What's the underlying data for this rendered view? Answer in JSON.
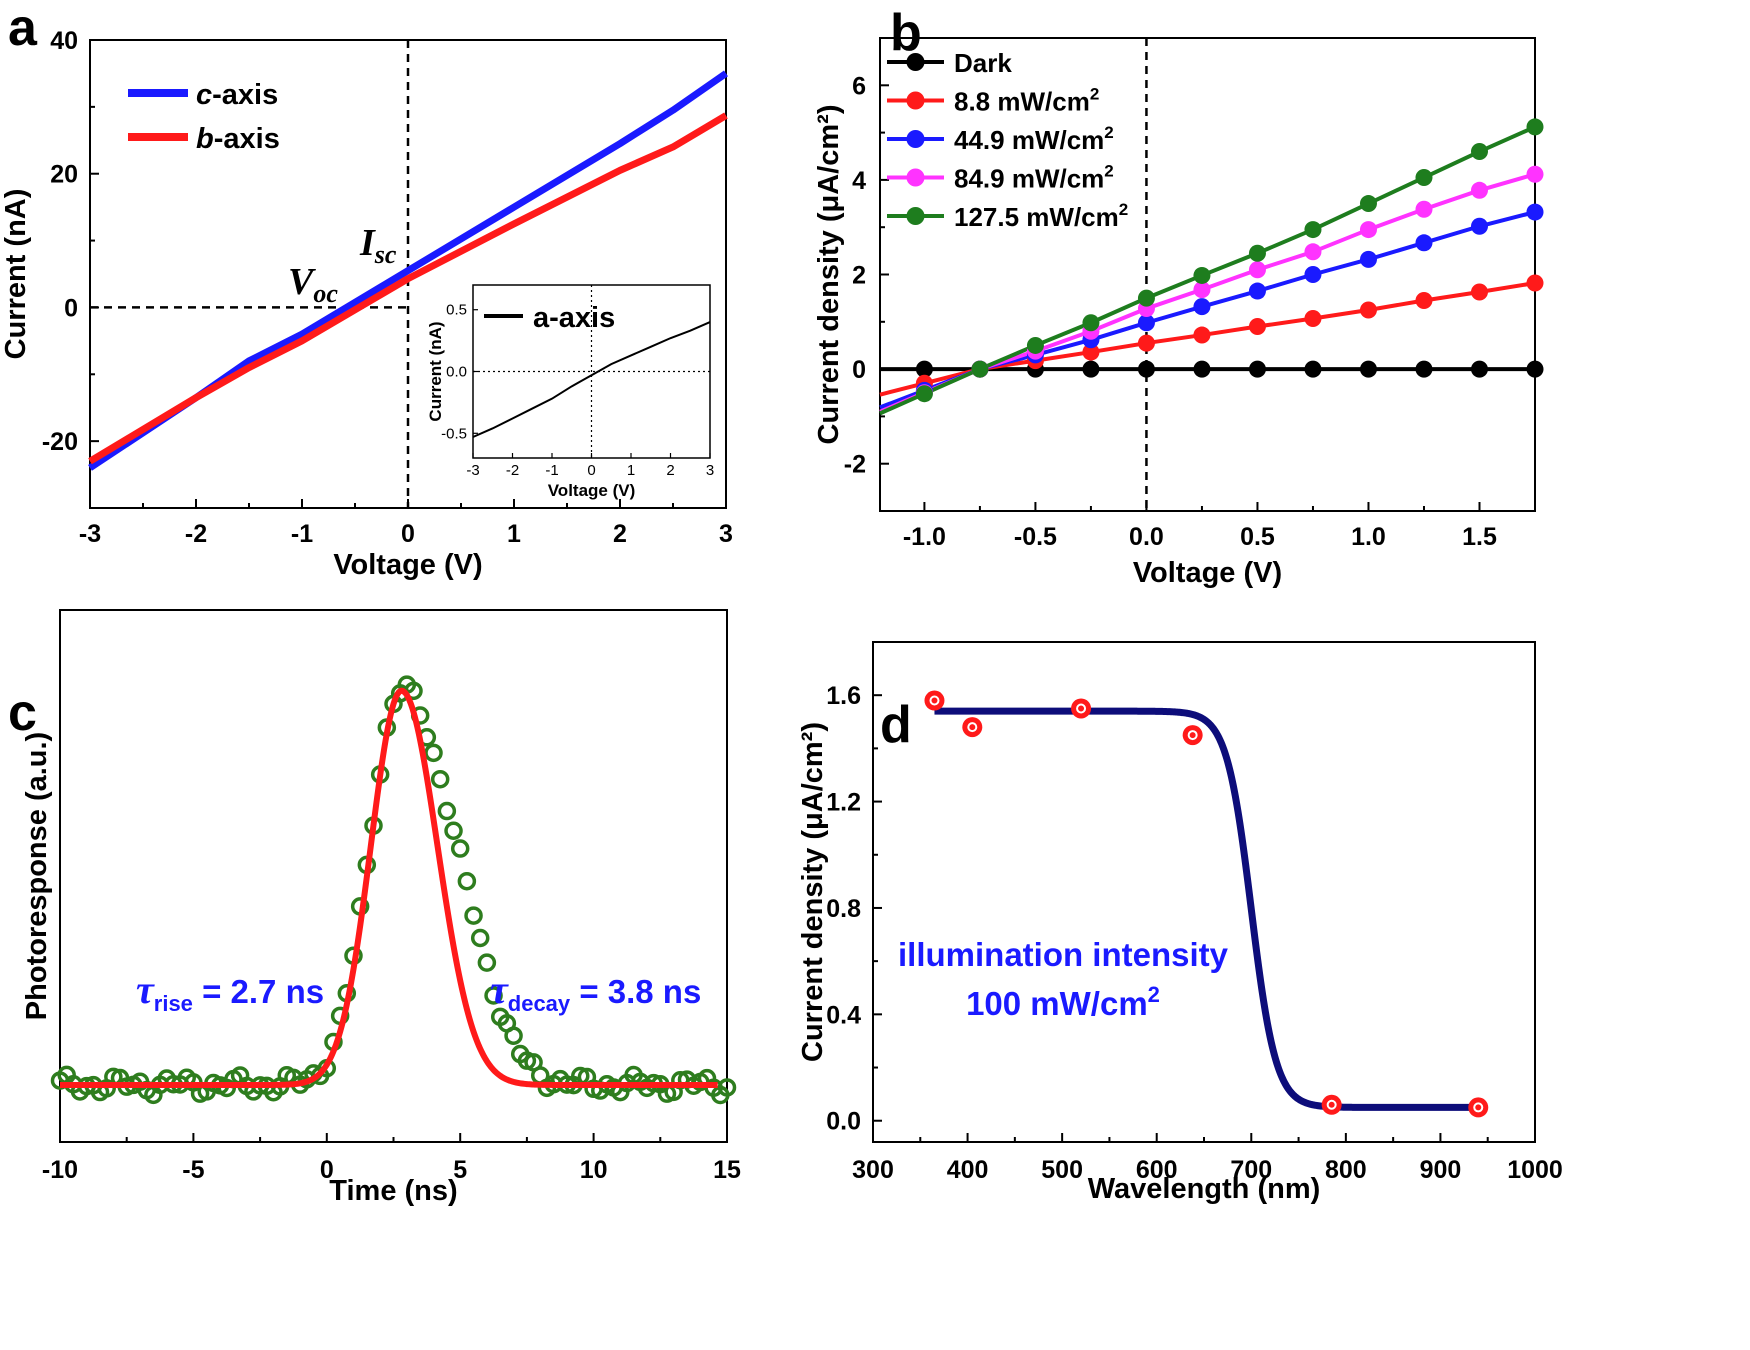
{
  "panel_labels": [
    "a",
    "b",
    "c",
    "d"
  ],
  "colors": {
    "c_axis": "#1a1aff",
    "b_axis": "#ff1a1a",
    "dark": "#000000",
    "p8_8": "#ff1a1a",
    "p44_9": "#1a1aff",
    "p84_9": "#ff33ff",
    "p127_5": "#1e7d1e",
    "fit_c": "#ff1a1a",
    "data_c": "#2e7d1e",
    "fit_d": "#0d0d7a",
    "marker_d": "#ff1a1a",
    "annotation": "#1a1aff"
  },
  "chart_data": [
    {
      "panel": "a",
      "type": "line",
      "xlabel": "Voltage (V)",
      "ylabel": "Current (nA)",
      "xlim": [
        -3,
        3
      ],
      "ylim": [
        -30,
        40
      ],
      "xticks": [
        "-3",
        "-2",
        "-1",
        "0",
        "1",
        "2",
        "3"
      ],
      "yticks": [
        "-20",
        "0",
        "20",
        "40"
      ],
      "series": [
        {
          "name": "c-axis",
          "name_italic": "c",
          "name_rest": "-axis",
          "x": [
            -3,
            -2,
            -1.5,
            -1,
            0,
            1,
            2,
            2.5,
            3
          ],
          "values": [
            -24,
            -13.5,
            -8,
            -4,
            5.5,
            15,
            24.5,
            29.5,
            35
          ]
        },
        {
          "name": "b-axis",
          "name_italic": "b",
          "name_rest": "-axis",
          "x": [
            -3,
            -2,
            -1.5,
            -1,
            0,
            1,
            2,
            2.5,
            3
          ],
          "values": [
            -23,
            -13.5,
            -9,
            -5,
            4.3,
            12.5,
            20.5,
            24,
            28.7
          ]
        }
      ],
      "annotations": {
        "voc": "V",
        "voc_sub": "oc",
        "isc": "I",
        "isc_sub": "sc"
      },
      "inset": {
        "xlabel": "Voltage (V)",
        "ylabel": "Current (nA)",
        "xlim": [
          -3,
          3
        ],
        "ylim": [
          -0.7,
          0.7
        ],
        "xticks": [
          "-3",
          "-2",
          "-1",
          "0",
          "1",
          "2",
          "3"
        ],
        "yticks": [
          "-0.5",
          "0.0",
          "0.5"
        ],
        "series": [
          {
            "name": "a-axis",
            "x": [
              -3,
              -2.5,
              -2,
              -1.5,
              -1,
              -0.5,
              0,
              0.5,
              1,
              1.5,
              2,
              2.5,
              3
            ],
            "values": [
              -0.53,
              -0.46,
              -0.38,
              -0.3,
              -0.22,
              -0.12,
              -0.03,
              0.06,
              0.13,
              0.2,
              0.27,
              0.33,
              0.4
            ]
          }
        ]
      }
    },
    {
      "panel": "b",
      "type": "line",
      "xlabel": "Voltage (V)",
      "ylabel": "Current density (μA/cm²)",
      "xlim": [
        -1.2,
        1.75
      ],
      "ylim": [
        -3,
        7
      ],
      "xticks": [
        "-1.0",
        "-0.5",
        "0.0",
        "0.5",
        "1.0",
        "1.5"
      ],
      "yticks": [
        "-2",
        "0",
        "2",
        "4",
        "6"
      ],
      "x": [
        -1.0,
        -0.75,
        -0.5,
        -0.25,
        0.0,
        0.25,
        0.5,
        0.75,
        1.0,
        1.25,
        1.5,
        1.75
      ],
      "series": [
        {
          "name": "Dark",
          "values": [
            0,
            0,
            0,
            0,
            0,
            0,
            0,
            0,
            0,
            0,
            0,
            0
          ]
        },
        {
          "name": "8.8 mW/cm2",
          "values": [
            -0.3,
            0,
            0.18,
            0.36,
            0.55,
            0.72,
            0.9,
            1.07,
            1.25,
            1.45,
            1.63,
            1.82
          ]
        },
        {
          "name": "44.9 mW/cm2",
          "values": [
            -0.45,
            0,
            0.3,
            0.62,
            0.98,
            1.32,
            1.65,
            2.0,
            2.32,
            2.67,
            3.02,
            3.32
          ]
        },
        {
          "name": "84.9 mW/cm2",
          "values": [
            -0.5,
            0,
            0.38,
            0.8,
            1.28,
            1.68,
            2.1,
            2.48,
            2.95,
            3.38,
            3.78,
            4.12
          ]
        },
        {
          "name": "127.5 mW/cm2",
          "values": [
            -0.52,
            0,
            0.5,
            0.98,
            1.5,
            1.98,
            2.45,
            2.95,
            3.5,
            4.05,
            4.6,
            5.12
          ]
        }
      ],
      "legend_labels": [
        "Dark",
        "8.8 mW/cm",
        "44.9 mW/cm",
        "84.9 mW/cm",
        "127.5 mW/cm"
      ],
      "legend_sup": "2"
    },
    {
      "panel": "c",
      "type": "scatter",
      "xlabel": "Time (ns)",
      "ylabel": "Photoresponse (a.u.)",
      "xlim": [
        -10,
        15
      ],
      "ylim": [
        0,
        1.12
      ],
      "xticks": [
        "-10",
        "-5",
        "0",
        "5",
        "10",
        "15"
      ],
      "fit": {
        "peak_time": 2.8,
        "rise": 2.7,
        "decay": 3.8
      },
      "annotations": {
        "rise_symbol": "τ",
        "rise_sub": "rise",
        "rise_value": " = 2.7 ns",
        "decay_symbol": "τ",
        "decay_sub": "decay",
        "decay_value": " = 3.8 ns"
      }
    },
    {
      "panel": "d",
      "type": "scatter",
      "xlabel": "Wavelength (nm)",
      "ylabel": "Current density (μA/cm²)",
      "xlim": [
        300,
        1000
      ],
      "ylim": [
        -0.08,
        1.8
      ],
      "xticks": [
        "300",
        "400",
        "500",
        "600",
        "700",
        "800",
        "900",
        "1000"
      ],
      "yticks": [
        "0.0",
        "0.4",
        "0.8",
        "1.2",
        "1.6"
      ],
      "x": [
        365,
        405,
        520,
        638,
        785,
        940
      ],
      "values": [
        1.58,
        1.48,
        1.55,
        1.45,
        0.06,
        0.05
      ],
      "annotations": {
        "line1": "illumination intensity",
        "line2": "100 mW/cm",
        "line2_sup": "2"
      }
    }
  ]
}
